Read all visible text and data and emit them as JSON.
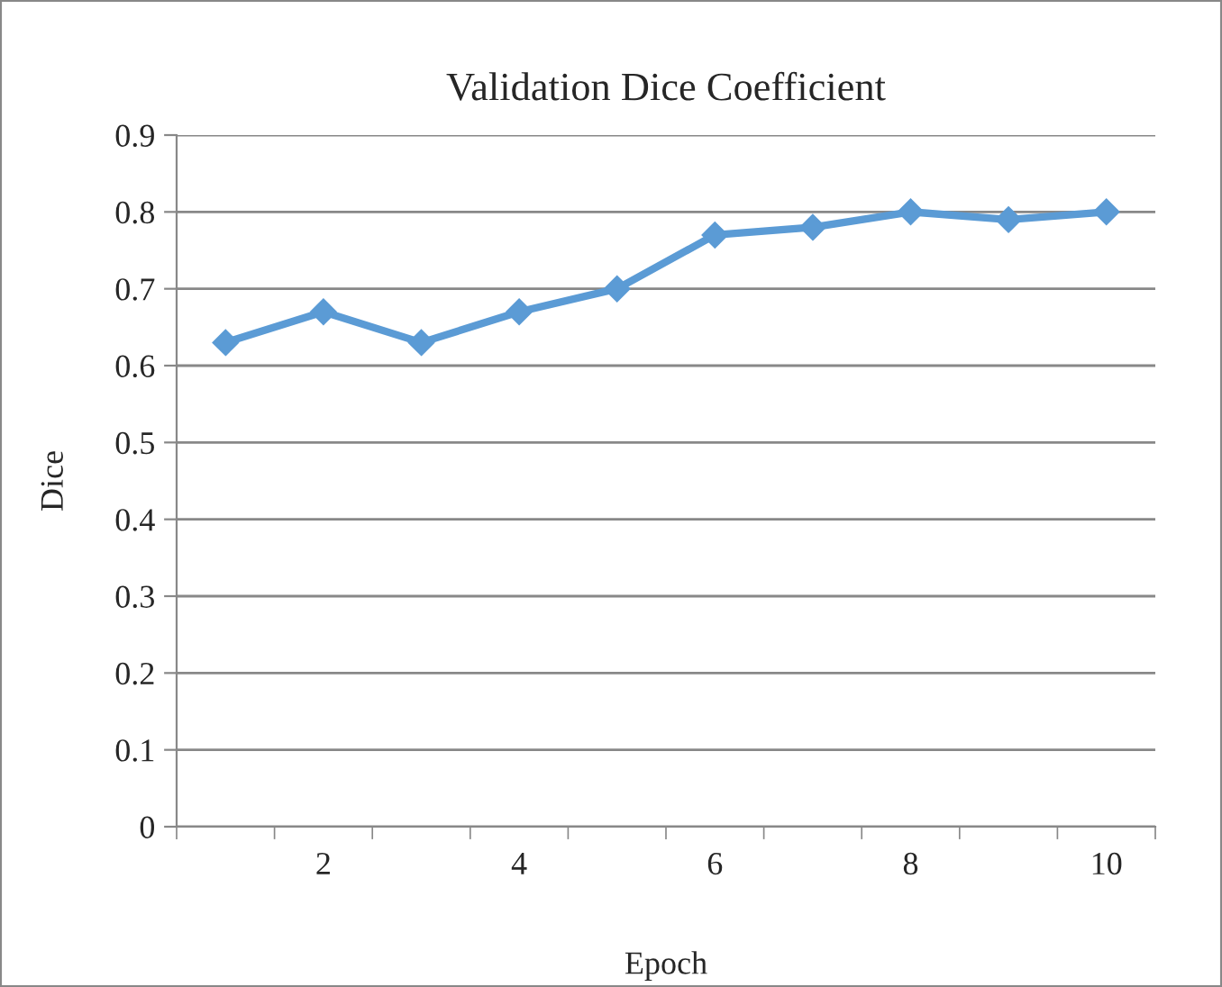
{
  "chart_data": {
    "type": "line",
    "title": "Validation Dice Coefficient",
    "xlabel": "Epoch",
    "ylabel": "Dice",
    "categories": [
      null,
      "2",
      null,
      "4",
      null,
      "6",
      null,
      "8",
      null,
      "10"
    ],
    "series": [
      {
        "color": "#5b9bd5",
        "values": [
          0.63,
          0.67,
          0.63,
          0.67,
          0.7,
          0.77,
          0.78,
          0.8,
          0.79,
          0.8
        ]
      }
    ],
    "ylim": [
      0,
      0.9
    ],
    "yticks": [
      0,
      0.1,
      0.2,
      0.3,
      0.4,
      0.5,
      0.6,
      0.7,
      0.8,
      0.9
    ],
    "grid": "y",
    "marker": "diamond",
    "line_style": "solid",
    "legend": false
  }
}
